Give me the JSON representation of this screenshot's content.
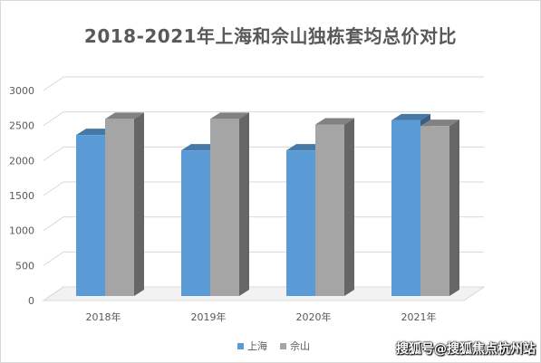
{
  "chart_data": {
    "type": "bar",
    "title": "2018-2021年上海和佘山独栋套均总价对比",
    "categories": [
      "2018年",
      "2019年",
      "2020年",
      "2021年"
    ],
    "series": [
      {
        "name": "上海",
        "values": [
          2300,
          2080,
          2080,
          2510
        ],
        "color": "#5b9bd5"
      },
      {
        "name": "佘山",
        "values": [
          2530,
          2530,
          2450,
          2430
        ],
        "color": "#a5a5a5"
      }
    ],
    "ylim": [
      0,
      3000
    ],
    "yticks": [
      "0",
      "500",
      "1000",
      "1500",
      "2000",
      "2500",
      "3000"
    ],
    "grid": true,
    "legend_position": "bottom",
    "style": "3d-clustered-column"
  },
  "watermark": "搜狐号@搜狐焦点杭州站"
}
